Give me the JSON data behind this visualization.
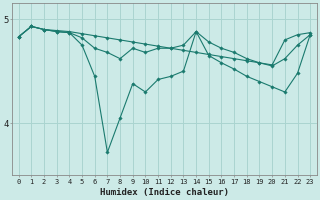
{
  "xlabel": "Humidex (Indice chaleur)",
  "ylabel": "",
  "bg_color": "#cceae7",
  "grid_color": "#aad4d0",
  "line_color": "#1a7a6e",
  "x": [
    0,
    1,
    2,
    3,
    4,
    5,
    6,
    7,
    8,
    9,
    10,
    11,
    12,
    13,
    14,
    15,
    16,
    17,
    18,
    19,
    20,
    21,
    22,
    23
  ],
  "line1": [
    4.83,
    4.93,
    4.9,
    4.89,
    4.88,
    4.86,
    4.84,
    4.82,
    4.8,
    4.78,
    4.76,
    4.74,
    4.72,
    4.7,
    4.68,
    4.66,
    4.64,
    4.62,
    4.6,
    4.58,
    4.56,
    4.8,
    4.85,
    4.87
  ],
  "line2": [
    4.83,
    4.93,
    4.9,
    4.88,
    4.87,
    4.82,
    4.72,
    4.68,
    4.62,
    4.72,
    4.68,
    4.72,
    4.72,
    4.75,
    4.88,
    4.78,
    4.72,
    4.68,
    4.62,
    4.58,
    4.55,
    4.62,
    4.75,
    4.85
  ],
  "line3": [
    4.83,
    4.93,
    4.9,
    4.88,
    4.87,
    4.75,
    4.45,
    3.72,
    4.05,
    4.38,
    4.3,
    4.42,
    4.45,
    4.5,
    4.88,
    4.65,
    4.58,
    4.52,
    4.45,
    4.4,
    4.35,
    4.3,
    4.48,
    4.85
  ],
  "ylim": [
    3.5,
    5.15
  ],
  "yticks": [
    4.0,
    5.0
  ]
}
